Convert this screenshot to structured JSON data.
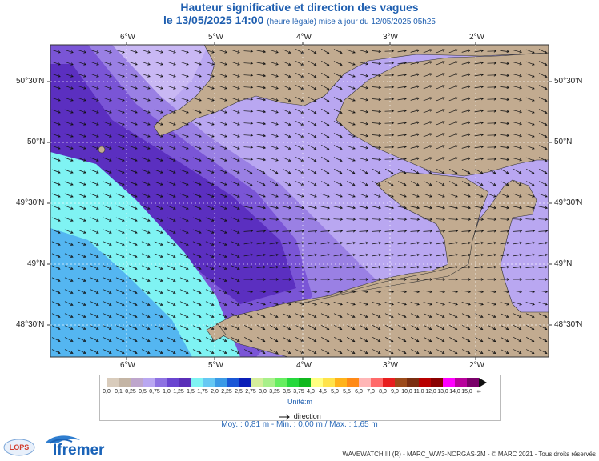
{
  "header": {
    "title": "Hauteur significative et direction des vagues",
    "date_line": "le 13/05/2025 14:00",
    "update_note": "(heure légale) mise à jour du 12/05/2025 05h25"
  },
  "map": {
    "longitude_labels": [
      "6°W",
      "5°W",
      "4°W",
      "3°W",
      "2°W"
    ],
    "latitude_labels": [
      "50°30'N",
      "50°N",
      "49°30'N",
      "49°N",
      "48°30'N"
    ],
    "land_color": "#c2ab90",
    "wave_colors": {
      "deep_purple": "#5b2fc0",
      "purple": "#7a55d6",
      "mid_lavender": "#9a80e4",
      "lavender": "#b9a7f1",
      "cyan": "#7ff3f3",
      "light_blue": "#54b6f1"
    }
  },
  "legend": {
    "colors": [
      "#d9ccbc",
      "#c4b5a5",
      "#bea6cc",
      "#b9a7f1",
      "#8e72e2",
      "#6a45d0",
      "#5a2fb8",
      "#7ff3f3",
      "#66c8f3",
      "#3b9ae6",
      "#1a57d6",
      "#0a1fb8",
      "#d5ee9c",
      "#a8f08a",
      "#66ee60",
      "#26d83c",
      "#10b81e",
      "#ffff80",
      "#ffe34a",
      "#ffb31a",
      "#ff8a16",
      "#ffb6b6",
      "#ff6a6a",
      "#e81e1e",
      "#9c4a1a",
      "#7a2e10",
      "#b80000",
      "#8a0000",
      "#ff00ff",
      "#b8009c",
      "#7a006a"
    ],
    "ticks": [
      "0,0",
      "0,1",
      "0,25",
      "0,5",
      "0,75",
      "1,0",
      "1,25",
      "1,5",
      "1,75",
      "2,0",
      "2,25",
      "2,5",
      "2,75",
      "3,0",
      "3,25",
      "3,5",
      "3,75",
      "4,0",
      "4,5",
      "5,0",
      "5,5",
      "6,0",
      "7,0",
      "8,0",
      "9,0",
      "10,0",
      "11,0",
      "12,0",
      "13,0",
      "14,0",
      "15,0",
      "∞"
    ],
    "unit": "Unité:m",
    "direction_label": "direction"
  },
  "stats": {
    "text": "Moy. : 0,81 m   -   Min. : 0,00 m / Max. : 1,65 m"
  },
  "footer": {
    "text": "WAVEWATCH III (R) - MARC_WW3-NORGAS-2M - © MARC 2021 - Tous droits réservés"
  },
  "logos": {
    "lops": "LOPS",
    "ifremer": "Ifremer"
  }
}
